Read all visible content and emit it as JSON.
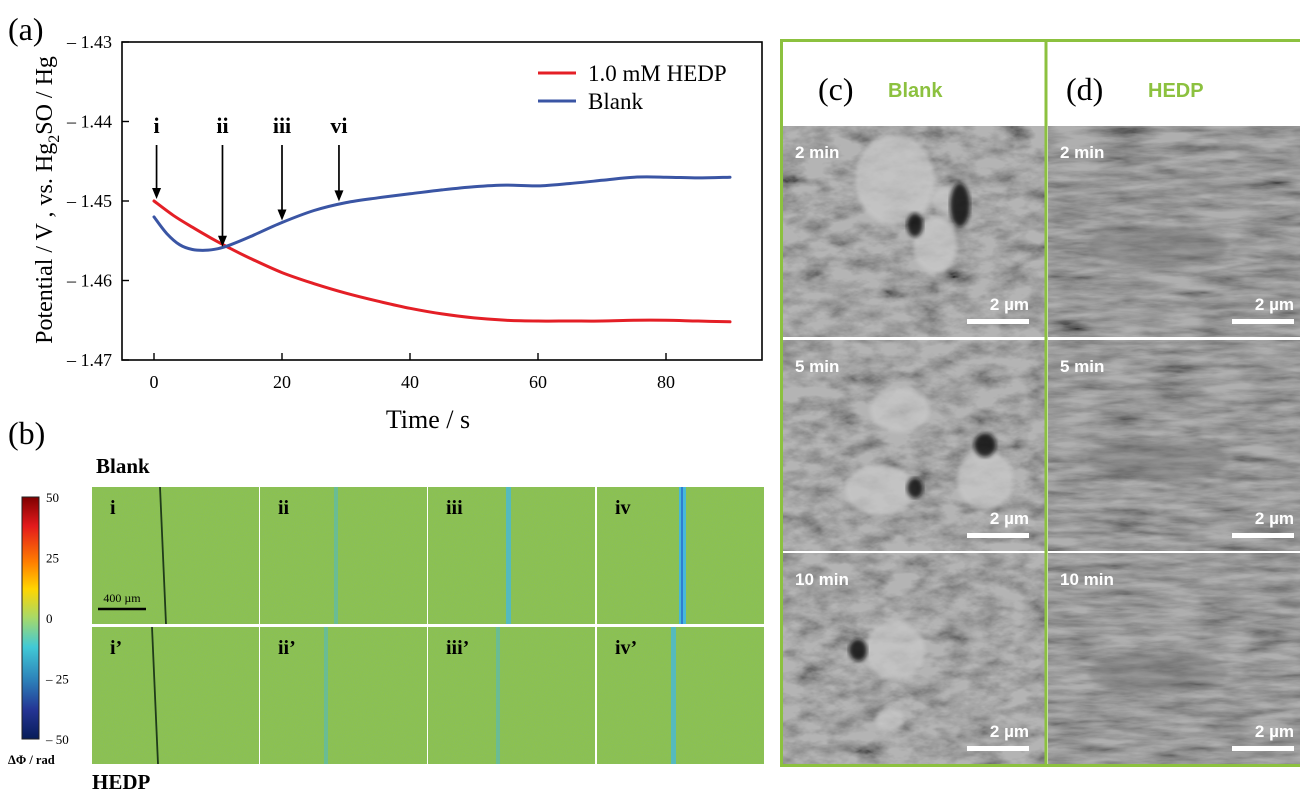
{
  "panel_a": {
    "label": "(a)",
    "chart_data": {
      "type": "line",
      "xlabel": "Time / s",
      "ylabel_main": "Potential / V , vs. Hg",
      "ylabel_sub": "2",
      "ylabel_tail": "SO / Hg",
      "xlim": [
        -5,
        95
      ],
      "ylim": [
        -1.47,
        -1.43
      ],
      "xticks": [
        0,
        20,
        40,
        60,
        80
      ],
      "yticks": [
        -1.43,
        -1.44,
        -1.45,
        -1.46,
        -1.47
      ],
      "ytick_labels": [
        "– 1.43",
        "– 1.44",
        "– 1.45",
        "– 1.46",
        "– 1.47"
      ],
      "legend_position": "top-right",
      "series": [
        {
          "name": "1.0 mM HEDP",
          "color": "#e41f26",
          "x": [
            0,
            3,
            6,
            9,
            12,
            15,
            20,
            25,
            30,
            35,
            40,
            45,
            50,
            55,
            60,
            65,
            70,
            75,
            80,
            85,
            90
          ],
          "y": [
            -1.45,
            -1.4518,
            -1.4533,
            -1.4547,
            -1.456,
            -1.4572,
            -1.459,
            -1.4604,
            -1.4616,
            -1.4626,
            -1.4635,
            -1.4642,
            -1.4647,
            -1.465,
            -1.4651,
            -1.4651,
            -1.4651,
            -1.465,
            -1.465,
            -1.4651,
            -1.4652
          ]
        },
        {
          "name": "Blank",
          "color": "#3a55a4",
          "x": [
            0,
            2,
            4,
            6,
            8,
            10,
            12,
            15,
            20,
            25,
            30,
            35,
            40,
            45,
            50,
            55,
            60,
            65,
            70,
            75,
            80,
            85,
            90
          ],
          "y": [
            -1.452,
            -1.4541,
            -1.4555,
            -1.4561,
            -1.4562,
            -1.456,
            -1.4555,
            -1.4545,
            -1.4527,
            -1.4512,
            -1.4502,
            -1.4496,
            -1.4491,
            -1.4486,
            -1.4482,
            -1.448,
            -1.4481,
            -1.4478,
            -1.4474,
            -1.447,
            -1.447,
            -1.4471,
            -1.447
          ]
        }
      ],
      "annotations": [
        {
          "text": "i",
          "x": 0.4,
          "y": -1.45
        },
        {
          "text": "ii",
          "x": 10.7,
          "y": -1.456
        },
        {
          "text": "iii",
          "x": 20.0,
          "y": -1.4527
        },
        {
          "text": "vi",
          "x": 28.9,
          "y": -1.4503
        }
      ]
    }
  },
  "panel_b": {
    "label": "(b)",
    "top_label": "Blank",
    "bottom_label": "HEDP",
    "colorbar": {
      "ticks": [
        "50",
        "25",
        "0",
        "– 25",
        "– 50"
      ],
      "title": "ΔΦ / rad",
      "colors": [
        "#7f0000",
        "#e31a1c",
        "#ff7f00",
        "#ffd500",
        "#a6d96a",
        "#41c9d6",
        "#2c7fb8",
        "#253494",
        "#081d58"
      ]
    },
    "scale_bar": "400 µm",
    "rows": [
      {
        "frames": [
          {
            "label": "i",
            "line_style": "dark"
          },
          {
            "label": "ii",
            "line_style": "faint"
          },
          {
            "label": "iii",
            "line_style": "mid"
          },
          {
            "label": "iv",
            "line_style": "strong"
          }
        ]
      },
      {
        "frames": [
          {
            "label": "i’",
            "line_style": "dark"
          },
          {
            "label": "ii’",
            "line_style": "faint"
          },
          {
            "label": "iii’",
            "line_style": "faint"
          },
          {
            "label": "iv’",
            "line_style": "mid"
          }
        ]
      }
    ],
    "field_color": "#8cc24f",
    "accent_blue": "#43b8e0"
  },
  "panels_cd": {
    "border_color": "#8cc13f",
    "label_color": "#8cc13f",
    "c_label": "(c)",
    "c_title": "Blank",
    "d_label": "(d)",
    "d_title": "HEDP",
    "times": [
      "2 min",
      "5 min",
      "10 min"
    ],
    "scale_label": "2 µm"
  }
}
